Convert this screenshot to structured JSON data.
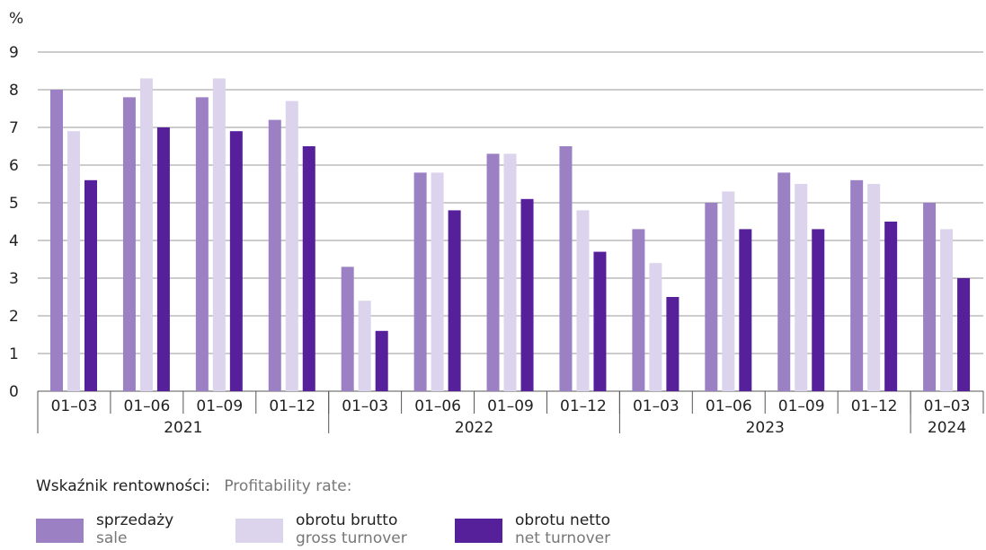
{
  "chart_data": {
    "type": "bar",
    "yunit": "%",
    "ylim": [
      0,
      9
    ],
    "yticks": [
      0,
      1,
      2,
      3,
      4,
      5,
      6,
      7,
      8,
      9
    ],
    "grid": true,
    "categories": [
      "01–03",
      "01–06",
      "01–09",
      "01–12",
      "01–03",
      "01–06",
      "01–09",
      "01–12",
      "01–03",
      "01–06",
      "01–09",
      "01–12",
      "01–03"
    ],
    "years": [
      {
        "label": "2021",
        "count": 4
      },
      {
        "label": "2022",
        "count": 4
      },
      {
        "label": "2023",
        "count": 4
      },
      {
        "label": "2024",
        "count": 1
      }
    ],
    "series": [
      {
        "name": "sprzedaży",
        "name_en": "sale",
        "color": "#9b80c4",
        "values": [
          8.0,
          7.8,
          7.8,
          7.2,
          3.3,
          5.8,
          6.3,
          6.5,
          4.3,
          5.0,
          5.8,
          5.6,
          5.0
        ]
      },
      {
        "name": "obrotu brutto",
        "name_en": "gross turnover",
        "color": "#dcd3ec",
        "values": [
          6.9,
          8.3,
          8.3,
          7.7,
          2.4,
          5.8,
          6.3,
          4.8,
          3.4,
          5.3,
          5.5,
          5.5,
          4.3
        ]
      },
      {
        "name": "obrotu netto",
        "name_en": "net turnover",
        "color": "#55209a",
        "values": [
          5.6,
          7.0,
          6.9,
          6.5,
          1.6,
          4.8,
          5.1,
          3.7,
          2.5,
          4.3,
          4.3,
          4.5,
          3.0
        ]
      }
    ],
    "legend_title": "Wskaźnik rentowności:",
    "legend_title_en": "Profitability rate:",
    "legend_position": "bottom-left"
  }
}
